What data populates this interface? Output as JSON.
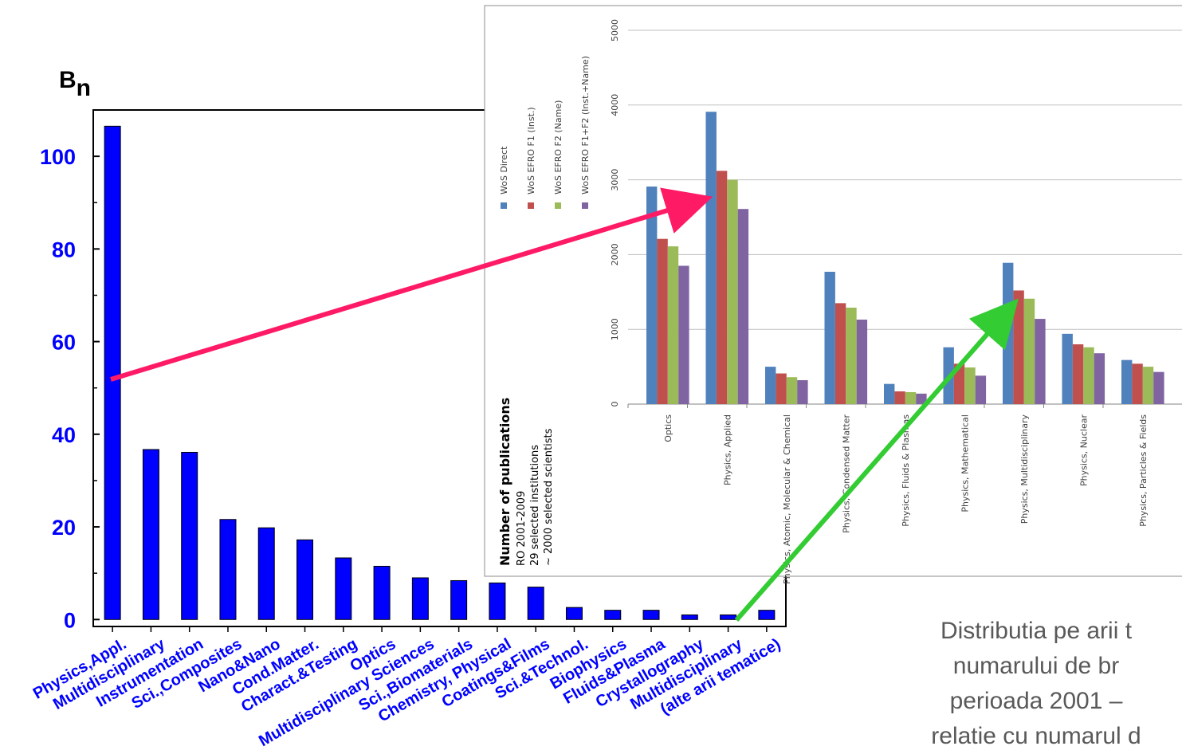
{
  "chart_data": [
    {
      "type": "bar",
      "ylabel": "B",
      "ylabel_sub": "n",
      "ylim": [
        0,
        110
      ],
      "yticks": [
        0,
        20,
        40,
        60,
        80,
        100
      ],
      "categories": [
        "Physics,Appl.",
        "Multidisciplinary",
        "Instrumentation",
        "Sci.,Composites",
        "Nano&Nano",
        "Cond.Matter.",
        "Charact.&Testing",
        "Optics",
        "Multidisciplinary Sciences",
        "Sci.,Biomaterials",
        "Chemistry, Physical",
        "Coatings&Films",
        "Sci.&Technol.",
        "Biophysics",
        "Fluids&Plasma",
        "Crystallography",
        "Multidisciplinary",
        "(alte arii tematice)"
      ],
      "values": [
        106.5,
        36.7,
        36.1,
        21.6,
        19.8,
        17.2,
        13.3,
        11.5,
        9.0,
        8.4,
        7.9,
        7.0,
        2.6,
        2.0,
        2.0,
        1.0,
        1.0,
        2.0
      ],
      "colors": {
        "bar": "#0000ff",
        "text": "#0000ff"
      }
    },
    {
      "type": "bar",
      "ylabel": "Number of publications",
      "subtitle_lines": [
        "RO 2001-2009",
        "29 selected institutions",
        "~ 2000 selected scientists"
      ],
      "ylim": [
        0,
        5000
      ],
      "yticks": [
        0,
        1000,
        2000,
        3000,
        4000,
        5000
      ],
      "grid": true,
      "legend_position": "left",
      "categories": [
        "Optics",
        "Physics, Applied",
        "Physics, Atomic, Molecular & Chemical",
        "Physics, Condensed Matter",
        "Physics, Fluids & Plasmas",
        "Physics, Mathematical",
        "Physics, Multidisciplinary",
        "Physics, Nuclear",
        "Physics, Particles & Fields"
      ],
      "series": [
        {
          "name": "WoS Direct",
          "color": "#4f81bd",
          "values": [
            2910,
            3910,
            500,
            1770,
            270,
            760,
            1890,
            940,
            590
          ]
        },
        {
          "name": "WoS EFRO F1 (Inst.)",
          "color": "#c0504d",
          "values": [
            2210,
            3120,
            410,
            1350,
            170,
            540,
            1520,
            800,
            540
          ]
        },
        {
          "name": "WoS EFRO F2 (Name)",
          "color": "#9bbb59",
          "values": [
            2110,
            3000,
            360,
            1290,
            160,
            490,
            1410,
            760,
            500
          ]
        },
        {
          "name": "WoS EFRO F1+F2 (Inst.+Name)",
          "color": "#8064a2",
          "values": [
            1850,
            2610,
            320,
            1130,
            140,
            380,
            1140,
            680,
            430
          ]
        }
      ]
    }
  ],
  "caption_lines": [
    "Distributia pe arii t",
    "numarului de br",
    "perioada 2001 –",
    "relatie cu numarul d"
  ],
  "arrows": {
    "top_color": "#ff1a66",
    "bottom_color": "#33cc33"
  }
}
